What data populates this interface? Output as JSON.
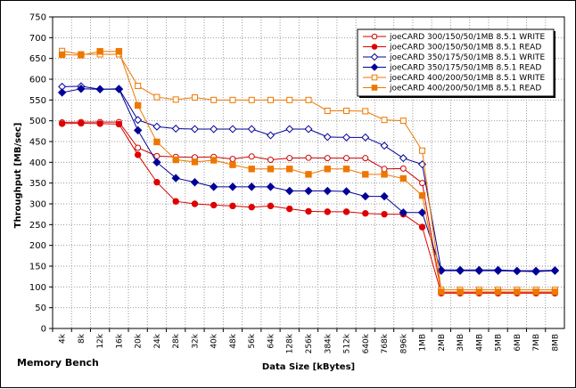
{
  "chart_data": {
    "type": "line",
    "caption": "Memory Bench",
    "xlabel": "Data Size [kBytes]",
    "ylabel": "Throughput [MB/sec]",
    "ylim": [
      0,
      750
    ],
    "y_ticks": [
      0,
      50,
      100,
      150,
      200,
      250,
      300,
      350,
      400,
      450,
      500,
      550,
      600,
      650,
      700,
      750
    ],
    "grid": true,
    "legend_position": "top-right",
    "categories": [
      "4k",
      "8k",
      "12k",
      "16k",
      "20k",
      "24k",
      "28k",
      "32k",
      "40k",
      "48k",
      "56k",
      "64k",
      "128k",
      "256k",
      "384k",
      "512k",
      "640k",
      "768k",
      "896k",
      "1MB",
      "2MB",
      "3MB",
      "4MB",
      "5MB",
      "6MB",
      "7MB",
      "8MB"
    ],
    "series": [
      {
        "name": "joeCARD 300/150/50/1MB 8.5.1 WRITE",
        "color": "#cc0000",
        "marker": "circle",
        "filled": false,
        "values": [
          496,
          497,
          497,
          497,
          435,
          415,
          413,
          412,
          413,
          408,
          414,
          406,
          410,
          411,
          410,
          410,
          410,
          384,
          385,
          350,
          87,
          87,
          87,
          87,
          87,
          87,
          87
        ]
      },
      {
        "name": "joeCARD 300/150/50/1MB 8.5.1 READ",
        "color": "#dd0000",
        "marker": "circle",
        "filled": true,
        "values": [
          493,
          494,
          493,
          492,
          418,
          352,
          306,
          300,
          297,
          295,
          292,
          295,
          288,
          282,
          281,
          281,
          277,
          275,
          275,
          244,
          85,
          85,
          85,
          85,
          85,
          85,
          85
        ]
      },
      {
        "name": "joeCARD 350/175/50/1MB 8.5.1 WRITE",
        "color": "#000099",
        "marker": "diamond",
        "filled": false,
        "values": [
          582,
          583,
          576,
          577,
          502,
          486,
          481,
          480,
          480,
          480,
          480,
          465,
          480,
          480,
          461,
          460,
          460,
          440,
          410,
          395,
          141,
          141,
          141,
          141,
          139,
          139,
          140
        ]
      },
      {
        "name": "joeCARD 350/175/50/1MB 8.5.1 READ",
        "color": "#000099",
        "marker": "diamond",
        "filled": true,
        "values": [
          568,
          577,
          576,
          576,
          477,
          400,
          362,
          352,
          341,
          341,
          341,
          341,
          331,
          331,
          331,
          330,
          318,
          318,
          279,
          279,
          139,
          139,
          139,
          139,
          138,
          137,
          139
        ]
      },
      {
        "name": "joeCARD 400/200/50/1MB 8.5.1 WRITE",
        "color": "#ee7700",
        "marker": "square",
        "filled": false,
        "values": [
          668,
          660,
          660,
          660,
          584,
          557,
          551,
          556,
          550,
          550,
          550,
          550,
          550,
          550,
          524,
          524,
          523,
          502,
          500,
          428,
          93,
          93,
          93,
          93,
          93,
          93,
          93
        ]
      },
      {
        "name": "joeCARD 400/200/50/1MB 8.5.1 READ",
        "color": "#ee7700",
        "marker": "square",
        "filled": true,
        "values": [
          659,
          658,
          667,
          667,
          537,
          449,
          406,
          401,
          405,
          394,
          384,
          384,
          384,
          371,
          384,
          384,
          371,
          371,
          361,
          320,
          88,
          88,
          88,
          88,
          88,
          88,
          88
        ]
      }
    ]
  }
}
